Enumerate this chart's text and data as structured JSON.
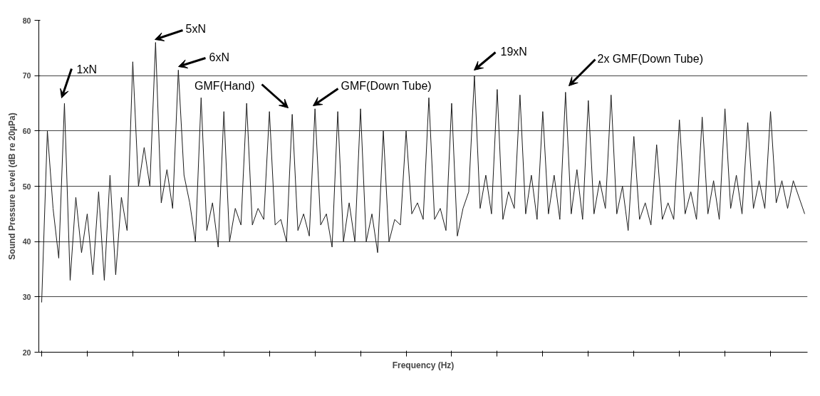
{
  "chart_data": {
    "type": "line",
    "xlabel": "Frequency (Hz)",
    "ylabel": "Sound Pressure Level (dB re 20µPa)",
    "categories": [
      null,
      null,
      null,
      null,
      null,
      null,
      null,
      null,
      null,
      null,
      null,
      null,
      null,
      null,
      null,
      null,
      null,
      null,
      null,
      null,
      null,
      null,
      null,
      null,
      null,
      null,
      null,
      null,
      null,
      null,
      null,
      null,
      null,
      null,
      null,
      null,
      null,
      null,
      null,
      null,
      null,
      null,
      null,
      null,
      null,
      null,
      null,
      null,
      null,
      null,
      null,
      null,
      null,
      null,
      null,
      null,
      null,
      null,
      null,
      null,
      null,
      null,
      null,
      null,
      null,
      null,
      null,
      null,
      null,
      null,
      null,
      null,
      null,
      null,
      null,
      null,
      null,
      null,
      null,
      null,
      null,
      null,
      null,
      null,
      null,
      null,
      null,
      null,
      null,
      null,
      null,
      null,
      null,
      null,
      null,
      null,
      null,
      null,
      null,
      null,
      null,
      null,
      null,
      null,
      null,
      null,
      null,
      null,
      null,
      null,
      null,
      null,
      null,
      null,
      null,
      null,
      null,
      null,
      null,
      null,
      null,
      null,
      null,
      null,
      null,
      null,
      null,
      null,
      null,
      null,
      null,
      null,
      null,
      null,
      null
    ],
    "series": [
      {
        "color": "#1a1a1a",
        "values": [
          29,
          60,
          46,
          37,
          65,
          33,
          48,
          38,
          45,
          34,
          49,
          33,
          52,
          34,
          48,
          42,
          72.5,
          50,
          57,
          50,
          76,
          47,
          53,
          46,
          71,
          52,
          47,
          40,
          66,
          42,
          47,
          39,
          63.5,
          40,
          46,
          43,
          65,
          43,
          46,
          44,
          63.5,
          43,
          44,
          40,
          63,
          42,
          45,
          41,
          64,
          43,
          45,
          39,
          63.5,
          40,
          47,
          40,
          64,
          40,
          45,
          38,
          60,
          40,
          44,
          43,
          60,
          45,
          47,
          44,
          66,
          44,
          46,
          42,
          65,
          41,
          46,
          49,
          70,
          46,
          52,
          45,
          67.5,
          44,
          49,
          46,
          66.5,
          45,
          52,
          44,
          63.5,
          45,
          52,
          44,
          67,
          45,
          53,
          44,
          65.5,
          45,
          51,
          46,
          66.5,
          45,
          50,
          42,
          59,
          44,
          47,
          43,
          57.5,
          44,
          47,
          44,
          62,
          45,
          49,
          44,
          62.5,
          45,
          51,
          44,
          64,
          46,
          52,
          45,
          61.5,
          46,
          51,
          46,
          63.5,
          47,
          51,
          46,
          51,
          48,
          45
        ]
      }
    ],
    "ylim": [
      20,
      80
    ],
    "yticks": [
      20,
      30,
      40,
      50,
      60,
      70,
      80
    ],
    "grid": "y",
    "tick_labels": "y",
    "marker": "none",
    "line_style": "solid",
    "annotations": [
      "1xN",
      "5xN",
      "6xN",
      "GMF(Hand)",
      "GMF(Down Tube)",
      "19xN",
      "2x GMF(Down Tube)"
    ]
  }
}
